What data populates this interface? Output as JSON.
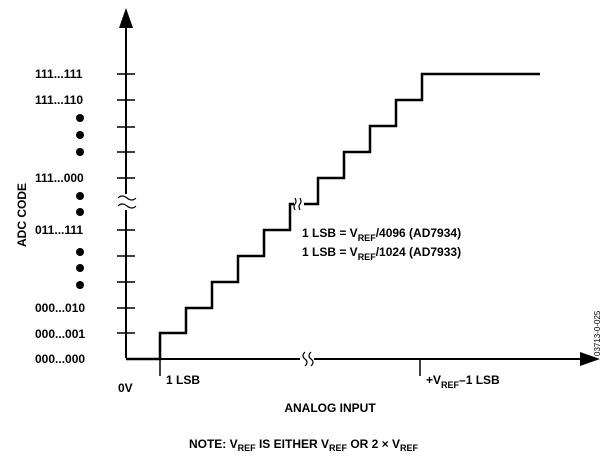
{
  "y_axis_label": "ADC CODE",
  "x_axis_label": "ANALOG INPUT",
  "y_ticks": [
    "111...111",
    "111...110",
    "111...000",
    "011...111",
    "000...010",
    "000...001",
    "000...000"
  ],
  "x_ticks": {
    "origin": "0V",
    "lsb": "1 LSB",
    "vref_prefix": "+V",
    "vref_sub": "REF",
    "vref_suffix": "–1 LSB"
  },
  "lsb_note": {
    "line1": {
      "prefix": "1 LSB = V",
      "sub": "REF",
      "suffix": "/4096 (AD7934)"
    },
    "line2": {
      "prefix": "1 LSB = V",
      "sub": "REF",
      "suffix": "/1024 (AD7933)"
    }
  },
  "figure_id": "03713-0-025",
  "note": {
    "p1": "NOTE: V",
    "s1": "REF",
    "p2": " IS EITHER V",
    "s2": "REF",
    "p3": " OR 2 × V",
    "s3": "REF"
  },
  "transfer_function": {
    "code_levels": [
      0,
      1,
      2,
      3,
      4,
      5,
      "break",
      6,
      7,
      8,
      9,
      10,
      11
    ],
    "style": "staircase",
    "color": "#000000"
  }
}
